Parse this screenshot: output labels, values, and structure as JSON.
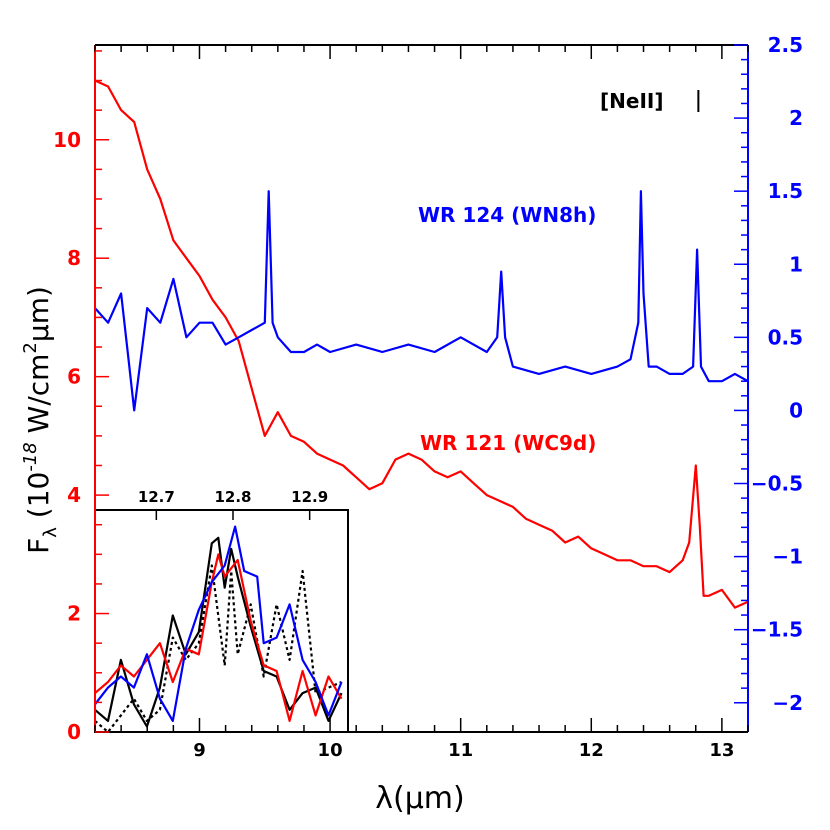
{
  "chart_data": {
    "type": "line",
    "xlabel": "λ(μm)",
    "ylabel_main": "F",
    "ylabel_sub": "λ",
    "ylabel_rest": " (10",
    "ylabel_exp": "-18",
    "ylabel_unit": " W/cm",
    "ylabel_sq": "2",
    "ylabel_end": "μm)",
    "xlim": [
      8.2,
      13.2
    ],
    "ylim_left": [
      0,
      11.6
    ],
    "ylim_right": [
      -2.2,
      2.5
    ],
    "x_ticks": [
      "9",
      "10",
      "11",
      "12",
      "13"
    ],
    "x_tick_values": [
      9,
      10,
      11,
      12,
      13
    ],
    "y_left_ticks": [
      "0",
      "2",
      "4",
      "6",
      "8",
      "10"
    ],
    "y_left_tick_values": [
      0,
      2,
      4,
      6,
      8,
      10
    ],
    "y_right_ticks": [
      "−2",
      "−1.5",
      "−1",
      "−0.5",
      "0",
      "0.5",
      "1",
      "1.5",
      "2",
      "2.5"
    ],
    "y_right_tick_values": [
      -2,
      -1.5,
      -1,
      -0.5,
      0,
      0.5,
      1,
      1.5,
      2,
      2.5
    ],
    "annotation_neII": "[NeII]",
    "annotation_neII_x": 12.82,
    "colors": {
      "wr121": "#ff0000",
      "wr124": "#0000ff",
      "axis_left": "#ff0000",
      "axis_right": "#0000ff",
      "inset_black": "#000000"
    },
    "series": [
      {
        "name": "WR 121 (WC9d)",
        "axis": "left",
        "x": [
          8.2,
          8.3,
          8.4,
          8.5,
          8.6,
          8.7,
          8.8,
          8.9,
          9.0,
          9.1,
          9.2,
          9.3,
          9.4,
          9.5,
          9.6,
          9.7,
          9.8,
          9.9,
          10.0,
          10.1,
          10.2,
          10.3,
          10.4,
          10.5,
          10.6,
          10.7,
          10.8,
          10.9,
          11.0,
          11.1,
          11.2,
          11.3,
          11.4,
          11.5,
          11.6,
          11.7,
          11.8,
          11.9,
          12.0,
          12.1,
          12.2,
          12.3,
          12.4,
          12.5,
          12.6,
          12.7,
          12.75,
          12.8,
          12.83,
          12.86,
          12.9,
          13.0,
          13.1,
          13.2
        ],
        "values": [
          11.0,
          10.9,
          10.5,
          10.3,
          9.5,
          9.0,
          8.3,
          8.0,
          7.7,
          7.3,
          7.0,
          6.6,
          5.8,
          5.0,
          5.4,
          5.0,
          4.9,
          4.7,
          4.6,
          4.5,
          4.3,
          4.1,
          4.2,
          4.6,
          4.7,
          4.6,
          4.4,
          4.3,
          4.4,
          4.2,
          4.0,
          3.9,
          3.8,
          3.6,
          3.5,
          3.4,
          3.2,
          3.3,
          3.1,
          3.0,
          2.9,
          2.9,
          2.8,
          2.8,
          2.7,
          2.9,
          3.2,
          4.5,
          3.5,
          2.3,
          2.3,
          2.4,
          2.1,
          2.2
        ]
      },
      {
        "name": "WR 124 (WN8h)",
        "axis": "right",
        "x": [
          8.2,
          8.3,
          8.4,
          8.45,
          8.5,
          8.6,
          8.7,
          8.8,
          8.9,
          9.0,
          9.1,
          9.2,
          9.3,
          9.4,
          9.5,
          9.53,
          9.56,
          9.6,
          9.7,
          9.8,
          9.9,
          10.0,
          10.2,
          10.4,
          10.6,
          10.8,
          11.0,
          11.2,
          11.28,
          11.31,
          11.34,
          11.4,
          11.6,
          11.8,
          12.0,
          12.2,
          12.3,
          12.36,
          12.38,
          12.4,
          12.44,
          12.5,
          12.6,
          12.7,
          12.78,
          12.81,
          12.84,
          12.9,
          13.0,
          13.1,
          13.2
        ],
        "values": [
          0.7,
          0.6,
          0.8,
          0.4,
          0.0,
          0.7,
          0.6,
          0.9,
          0.5,
          0.6,
          0.6,
          0.45,
          0.5,
          0.55,
          0.6,
          1.5,
          0.6,
          0.5,
          0.4,
          0.4,
          0.45,
          0.4,
          0.45,
          0.4,
          0.45,
          0.4,
          0.5,
          0.4,
          0.5,
          0.95,
          0.5,
          0.3,
          0.25,
          0.3,
          0.25,
          0.3,
          0.35,
          0.6,
          1.5,
          0.8,
          0.3,
          0.3,
          0.25,
          0.25,
          0.3,
          1.1,
          0.3,
          0.2,
          0.2,
          0.25,
          0.2
        ]
      }
    ],
    "inset": {
      "x_ticks": [
        "9",
        "10"
      ],
      "x_tick_values": [
        9,
        10
      ],
      "top_ticks": [
        "12.7",
        "12.8",
        "12.9"
      ],
      "top_tick_values": [
        12.7,
        12.8,
        12.9
      ],
      "xlim": [
        8.2,
        10.15
      ],
      "ylim": [
        0,
        4
      ],
      "series": [
        {
          "color": "#000000",
          "dash": "",
          "x": [
            8.2,
            8.3,
            8.4,
            8.5,
            8.6,
            8.7,
            8.8,
            8.9,
            9.0,
            9.1,
            9.15,
            9.2,
            9.25,
            9.3,
            9.4,
            9.5,
            9.6,
            9.7,
            9.8,
            9.9,
            10.0,
            10.1
          ],
          "values": [
            0.4,
            0.2,
            1.3,
            0.5,
            0.1,
            0.8,
            2.1,
            1.4,
            1.8,
            3.4,
            3.5,
            2.6,
            3.3,
            2.8,
            1.9,
            1.1,
            1.0,
            0.4,
            0.7,
            0.8,
            0.2,
            0.7
          ]
        },
        {
          "color": "#000000",
          "dash": "3,3",
          "x": [
            8.2,
            8.3,
            8.4,
            8.5,
            8.6,
            8.7,
            8.8,
            8.9,
            9.0,
            9.1,
            9.2,
            9.25,
            9.3,
            9.4,
            9.5,
            9.6,
            9.7,
            9.8,
            9.9,
            10.0,
            10.1
          ],
          "values": [
            0.2,
            0.0,
            0.3,
            0.6,
            0.2,
            0.4,
            1.7,
            1.3,
            1.6,
            3.0,
            1.2,
            2.9,
            1.4,
            2.3,
            1.0,
            2.3,
            1.3,
            2.9,
            0.7,
            0.8,
            0.9
          ]
        },
        {
          "color": "#ff0000",
          "dash": "",
          "x": [
            8.2,
            8.3,
            8.4,
            8.5,
            8.6,
            8.7,
            8.8,
            8.9,
            9.0,
            9.1,
            9.15,
            9.2,
            9.3,
            9.4,
            9.5,
            9.6,
            9.7,
            9.8,
            9.9,
            10.0,
            10.1
          ],
          "values": [
            0.7,
            0.9,
            1.2,
            1.0,
            1.3,
            1.6,
            0.9,
            1.5,
            1.4,
            2.7,
            3.2,
            2.8,
            3.1,
            2.0,
            1.2,
            1.1,
            0.2,
            1.1,
            0.3,
            1.0,
            0.6
          ]
        },
        {
          "color": "#0000ff",
          "dash": "",
          "x": [
            8.2,
            8.3,
            8.4,
            8.5,
            8.6,
            8.7,
            8.8,
            8.9,
            9.0,
            9.1,
            9.2,
            9.28,
            9.35,
            9.45,
            9.5,
            9.6,
            9.7,
            9.8,
            9.9,
            10.0,
            10.1
          ],
          "values": [
            0.5,
            0.8,
            1.0,
            0.8,
            1.4,
            0.6,
            0.2,
            1.5,
            2.2,
            2.7,
            3.0,
            3.7,
            2.9,
            2.8,
            1.6,
            1.7,
            2.3,
            1.3,
            0.9,
            0.3,
            0.9
          ]
        }
      ]
    }
  }
}
